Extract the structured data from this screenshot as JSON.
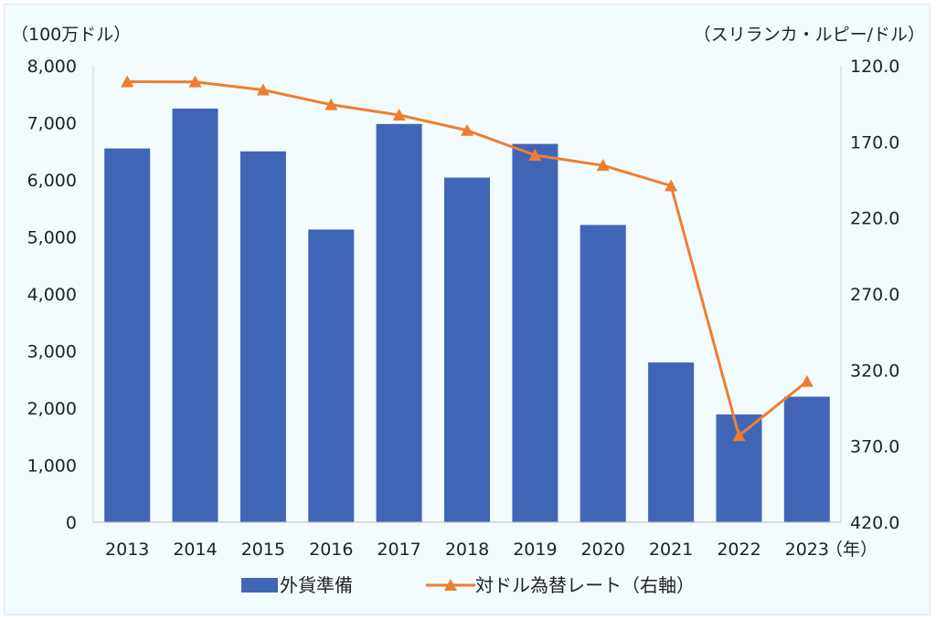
{
  "chart_data": {
    "type": "bar+line",
    "categories": [
      "2013",
      "2014",
      "2015",
      "2016",
      "2017",
      "2018",
      "2019",
      "2020",
      "2021",
      "2022",
      "2023"
    ],
    "series": [
      {
        "name": "外貨準備",
        "type": "bar",
        "axis": "left",
        "color": "#4166b8",
        "values": [
          6550,
          7250,
          6500,
          5130,
          6980,
          6040,
          6630,
          5210,
          2800,
          1890,
          2200
        ]
      },
      {
        "name": "対ドル為替レート（右軸）",
        "type": "line",
        "axis": "right",
        "color": "#ef7d2f",
        "marker": "triangle",
        "values": [
          130.5,
          130.6,
          135.9,
          145.6,
          152.4,
          162.5,
          178.8,
          185.5,
          198.9,
          363.1,
          327.5
        ]
      }
    ],
    "left_axis": {
      "unit_label": "（100万ドル）",
      "min": 0,
      "max": 8000,
      "ticks": [
        0,
        1000,
        2000,
        3000,
        4000,
        5000,
        6000,
        7000,
        8000
      ],
      "tick_labels": [
        "0",
        "1,000",
        "2,000",
        "3,000",
        "4,000",
        "5,000",
        "6,000",
        "7,000",
        "8,000"
      ]
    },
    "right_axis": {
      "unit_label": "（スリランカ・ルピー/ドル）",
      "min": 120,
      "max": 420,
      "inverted": true,
      "ticks": [
        120,
        170,
        220,
        270,
        320,
        370,
        420
      ],
      "tick_labels": [
        "120.0",
        "170.0",
        "220.0",
        "270.0",
        "320.0",
        "370.0",
        "420.0"
      ]
    },
    "x_unit_label": "（年）",
    "legend_position": "bottom",
    "grid": false
  }
}
